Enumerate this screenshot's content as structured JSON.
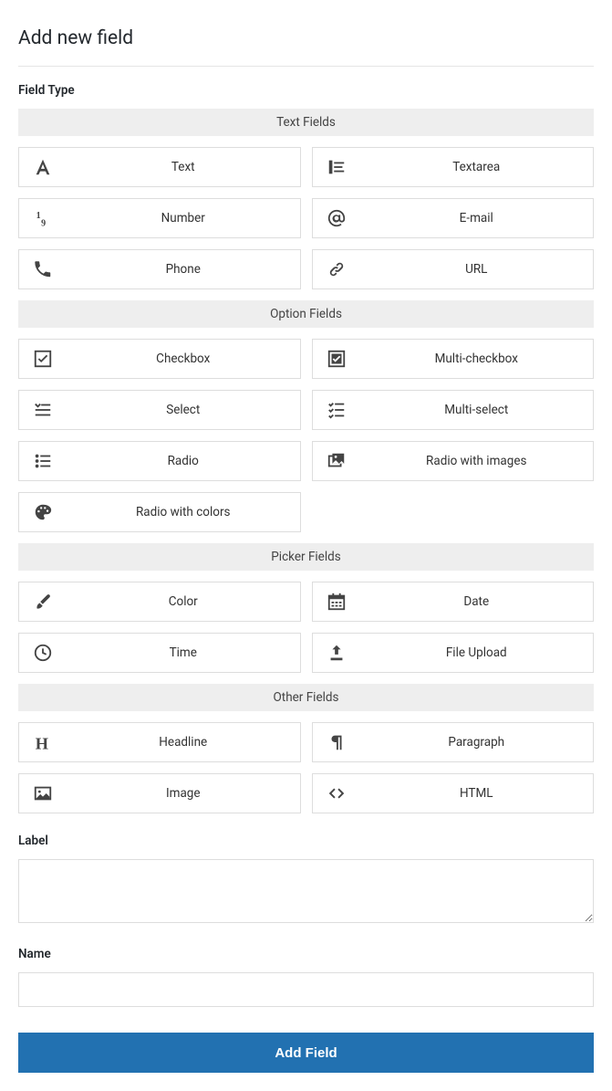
{
  "page": {
    "title": "Add new field",
    "field_type_label": "Field Type",
    "label_field_label": "Label",
    "name_field_label": "Name",
    "submit_label": "Add Field"
  },
  "colors": {
    "background": "#ffffff",
    "text": "#23282d",
    "group_header_bg": "#eeeeee",
    "option_border": "#dddddd",
    "icon": "#444444",
    "submit_bg": "#2271b1",
    "submit_text": "#ffffff",
    "divider": "#e5e5e5"
  },
  "groups": [
    {
      "title": "Text Fields",
      "items": [
        {
          "name": "text",
          "label": "Text",
          "icon": "font-icon"
        },
        {
          "name": "textarea",
          "label": "Textarea",
          "icon": "align-left-icon"
        },
        {
          "name": "number",
          "label": "Number",
          "icon": "numbers-icon"
        },
        {
          "name": "email",
          "label": "E-mail",
          "icon": "at-icon"
        },
        {
          "name": "phone",
          "label": "Phone",
          "icon": "phone-icon"
        },
        {
          "name": "url",
          "label": "URL",
          "icon": "link-icon"
        }
      ]
    },
    {
      "title": "Option Fields",
      "items": [
        {
          "name": "checkbox",
          "label": "Checkbox",
          "icon": "checkbox-icon"
        },
        {
          "name": "multi-checkbox",
          "label": "Multi-checkbox",
          "icon": "checkbox-checked-icon"
        },
        {
          "name": "select",
          "label": "Select",
          "icon": "select-icon"
        },
        {
          "name": "multi-select",
          "label": "Multi-select",
          "icon": "checklist-icon"
        },
        {
          "name": "radio",
          "label": "Radio",
          "icon": "radio-icon"
        },
        {
          "name": "radio-images",
          "label": "Radio with images",
          "icon": "images-icon"
        },
        {
          "name": "radio-colors",
          "label": "Radio with colors",
          "icon": "palette-icon"
        }
      ]
    },
    {
      "title": "Picker Fields",
      "items": [
        {
          "name": "color",
          "label": "Color",
          "icon": "brush-icon"
        },
        {
          "name": "date",
          "label": "Date",
          "icon": "calendar-icon"
        },
        {
          "name": "time",
          "label": "Time",
          "icon": "clock-icon"
        },
        {
          "name": "file-upload",
          "label": "File Upload",
          "icon": "upload-icon"
        }
      ]
    },
    {
      "title": "Other Fields",
      "items": [
        {
          "name": "headline",
          "label": "Headline",
          "icon": "heading-icon"
        },
        {
          "name": "paragraph",
          "label": "Paragraph",
          "icon": "paragraph-icon"
        },
        {
          "name": "image",
          "label": "Image",
          "icon": "image-icon"
        },
        {
          "name": "html",
          "label": "HTML",
          "icon": "code-icon"
        }
      ]
    }
  ]
}
